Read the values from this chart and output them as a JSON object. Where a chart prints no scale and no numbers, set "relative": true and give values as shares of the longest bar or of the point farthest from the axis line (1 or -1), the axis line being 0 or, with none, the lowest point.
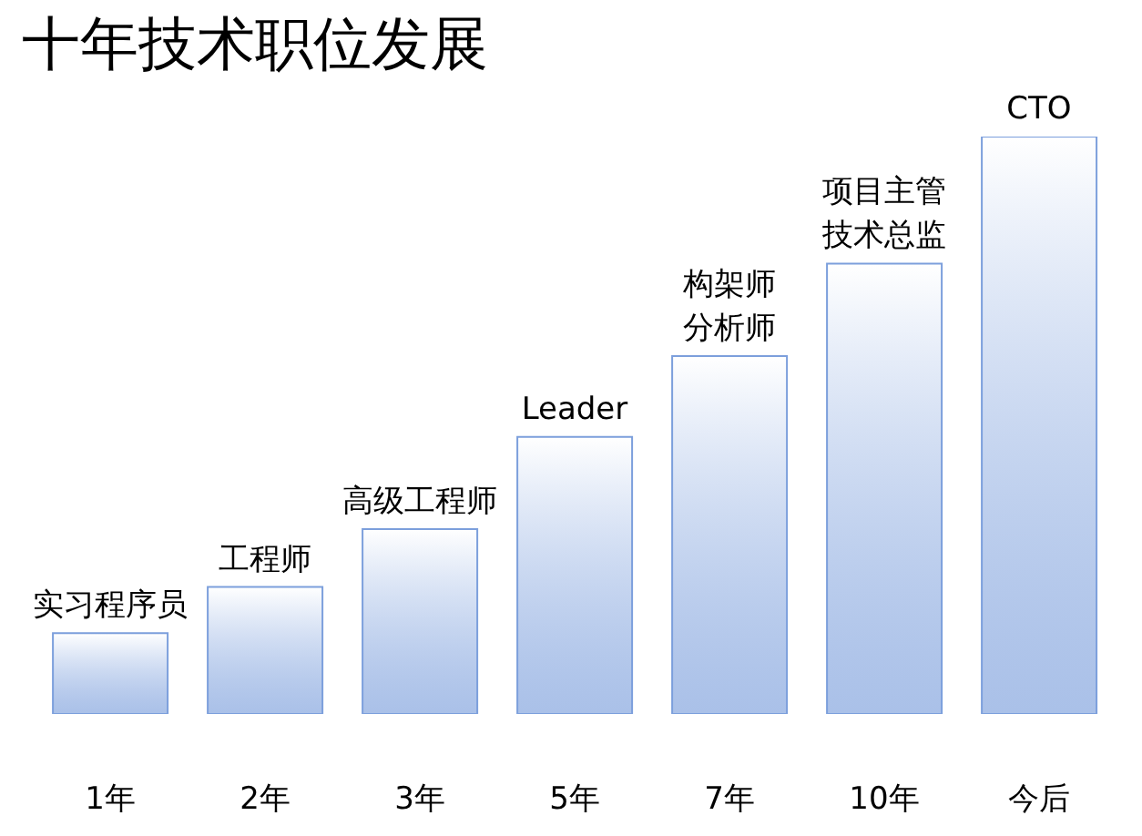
{
  "chart_data": {
    "type": "bar",
    "title": "十年技术职位发展",
    "relative": true,
    "categories": [
      "1年",
      "2年",
      "3年",
      "5年",
      "7年",
      "10年",
      "今后"
    ],
    "values": [
      0.14,
      0.22,
      0.32,
      0.48,
      0.62,
      0.78,
      1
    ],
    "color": "#7c9fdc",
    "annotations": [
      {
        "text": "实习程序员",
        "x": "1年",
        "y": 0.14
      },
      {
        "text": "工程师",
        "x": "2年",
        "y": 0.22
      },
      {
        "text": "高级工程师",
        "x": "3年",
        "y": 0.32
      },
      {
        "text": "Leader",
        "x": "5年",
        "y": 0.48
      },
      {
        "text": "构架师",
        "x": "7年",
        "y": 0.62
      },
      {
        "text": "分析师",
        "x": "7年",
        "y": 0.62
      },
      {
        "text": "项目主管",
        "x": "10年",
        "y": 0.78
      },
      {
        "text": "技术总监",
        "x": "10年",
        "y": 0.78
      },
      {
        "text": "CTO",
        "x": "今后",
        "y": 1
      }
    ]
  }
}
